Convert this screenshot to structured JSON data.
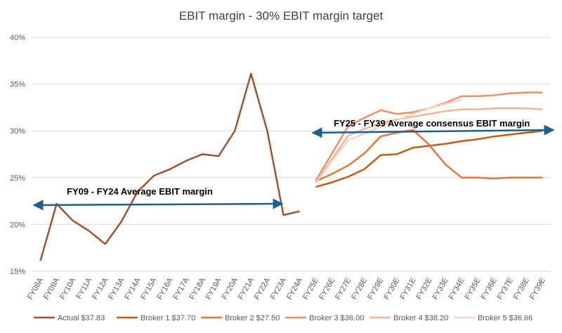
{
  "chart_data": {
    "type": "line",
    "title": "EBIT margin - 30% EBIT margin target",
    "categories": [
      "FY08A",
      "FY09A",
      "FY10A",
      "FY11A",
      "FY12A",
      "FY13A",
      "FY14A",
      "FY15A",
      "FY16A",
      "FY17A",
      "FY18A",
      "FY19A",
      "FY20A",
      "FY21A",
      "FY22A",
      "FY23A",
      "FY24A",
      "FY25E",
      "FY26E",
      "FY27E",
      "FY28E",
      "FY29E",
      "FY30E",
      "FY31E",
      "FY32E",
      "FY33E",
      "FY34E",
      "FY35E",
      "FY36E",
      "FY37E",
      "FY38E",
      "FY39E"
    ],
    "series": [
      {
        "name": "Actual $37.83",
        "color": "#a0522d",
        "values": [
          16.1,
          22.2,
          20.4,
          19.3,
          17.9,
          20.3,
          23.5,
          25.2,
          25.9,
          26.8,
          27.5,
          27.3,
          30.0,
          36.1,
          30.0,
          21.0,
          21.4,
          null,
          null,
          null,
          null,
          null,
          null,
          null,
          null,
          null,
          null,
          null,
          null,
          null,
          null,
          null
        ]
      },
      {
        "name": "Broker 1 $37.70",
        "color": "#c55a11",
        "values": [
          null,
          null,
          null,
          null,
          null,
          null,
          null,
          null,
          null,
          null,
          null,
          null,
          null,
          null,
          null,
          null,
          null,
          24.0,
          24.5,
          25.1,
          25.9,
          27.4,
          27.5,
          28.2,
          28.4,
          28.6,
          28.9,
          29.1,
          29.4,
          29.6,
          29.8,
          30.0
        ]
      },
      {
        "name": "Broker 2 $27.50",
        "color": "#e2773a",
        "values": [
          null,
          null,
          null,
          null,
          null,
          null,
          null,
          null,
          null,
          null,
          null,
          null,
          null,
          null,
          null,
          null,
          null,
          24.6,
          25.4,
          26.3,
          27.6,
          29.4,
          29.8,
          30.1,
          28.5,
          26.4,
          25.0,
          25.0,
          24.9,
          25.0,
          25.0,
          25.0
        ]
      },
      {
        "name": "Broker 3 $36.00",
        "color": "#e8926a",
        "values": [
          null,
          null,
          null,
          null,
          null,
          null,
          null,
          null,
          null,
          null,
          null,
          null,
          null,
          null,
          null,
          null,
          null,
          24.7,
          27.6,
          30.5,
          31.4,
          32.2,
          31.8,
          32.0,
          32.4,
          33.0,
          33.7,
          33.7,
          33.8,
          34.0,
          34.1,
          34.1
        ]
      },
      {
        "name": "Broker 4 $38.20",
        "color": "#f0b49a",
        "values": [
          null,
          null,
          null,
          null,
          null,
          null,
          null,
          null,
          null,
          null,
          null,
          null,
          null,
          null,
          null,
          null,
          null,
          24.5,
          27.0,
          29.5,
          30.2,
          30.8,
          31.2,
          31.5,
          31.8,
          32.1,
          32.3,
          32.3,
          32.4,
          32.4,
          32.4,
          32.3
        ]
      },
      {
        "name": "Broker 5 $36.66",
        "color": "#f6d2c2",
        "values": [
          null,
          null,
          null,
          null,
          null,
          null,
          null,
          null,
          null,
          null,
          null,
          null,
          null,
          null,
          null,
          null,
          null,
          24.4,
          26.8,
          29.0,
          29.7,
          30.5,
          31.1,
          31.8,
          32.4,
          32.9,
          33.3,
          null,
          null,
          null,
          null,
          null
        ]
      }
    ],
    "ylim": [
      15,
      40
    ],
    "yticks": [
      {
        "value": 15,
        "label": "15%"
      },
      {
        "value": 20,
        "label": "20%"
      },
      {
        "value": 25,
        "label": "25%"
      },
      {
        "value": 30,
        "label": "30%"
      },
      {
        "value": 35,
        "label": "35%"
      },
      {
        "value": 40,
        "label": "40%"
      }
    ],
    "grid": true,
    "annotations": [
      "FY09 - FY24 Average EBIT margin",
      "FY25 - FY39 Average consensus EBIT margin"
    ]
  }
}
